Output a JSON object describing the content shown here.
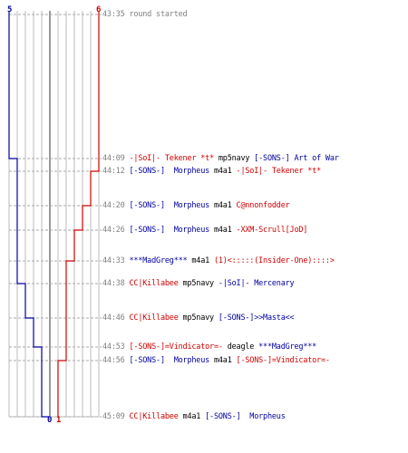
{
  "scoreboard": {
    "blue_start": "5",
    "red_start": "6",
    "blue_end": "0",
    "red_end": "1"
  },
  "colors": {
    "blue": "#0000a0",
    "red": "#d00000",
    "grid": "#bbbbbb",
    "center": "#555555",
    "dash": "#aaaaaa",
    "text": "#000000",
    "time": "#808080"
  },
  "chart_data": {
    "type": "line",
    "x": [
      "43:35",
      "44:09",
      "44:12",
      "44:20",
      "44:26",
      "44:33",
      "44:38",
      "44:46",
      "44:53",
      "44:56",
      "45:09"
    ],
    "series": [
      {
        "values": [
          5,
          4,
          4,
          4,
          4,
          4,
          3,
          2,
          1,
          1,
          0
        ]
      },
      {
        "values": [
          6,
          6,
          5,
          4,
          3,
          2,
          2,
          2,
          2,
          1,
          1
        ]
      }
    ]
  },
  "log": [
    {
      "time": "43:35",
      "parts": [
        {
          "text": "round started",
          "color": "gray"
        }
      ]
    },
    {
      "time": "44:09",
      "parts": [
        {
          "text": "-|SoI|- Tekener *t*",
          "color": "red"
        },
        {
          "text": " mp5navy ",
          "color": "black"
        },
        {
          "text": "[-SONS-] Art of War",
          "color": "blue"
        }
      ]
    },
    {
      "time": "44:12",
      "parts": [
        {
          "text": "[-SONS-]  Morpheus",
          "color": "blue"
        },
        {
          "text": " m4a1 ",
          "color": "black"
        },
        {
          "text": "-|SoI|- Tekener *t*",
          "color": "red"
        }
      ]
    },
    {
      "time": "44:20",
      "parts": [
        {
          "text": "[-SONS-]  Morpheus",
          "color": "blue"
        },
        {
          "text": " m4a1 ",
          "color": "black"
        },
        {
          "text": "C@nnonfodder",
          "color": "red"
        }
      ]
    },
    {
      "time": "44:26",
      "parts": [
        {
          "text": "[-SONS-]  Morpheus",
          "color": "blue"
        },
        {
          "text": " m4a1 ",
          "color": "black"
        },
        {
          "text": "-XXM-Scrull[JoD]",
          "color": "red"
        }
      ]
    },
    {
      "time": "44:33",
      "parts": [
        {
          "text": "***MadGreg***",
          "color": "blue"
        },
        {
          "text": " m4a1 ",
          "color": "black"
        },
        {
          "text": "(1)<:::::(Insider-One)::::>",
          "color": "red"
        }
      ]
    },
    {
      "time": "44:38",
      "parts": [
        {
          "text": "CC|Killabee",
          "color": "red"
        },
        {
          "text": " mp5navy ",
          "color": "black"
        },
        {
          "text": "-|SoI|- Mercenary",
          "color": "blue"
        }
      ]
    },
    {
      "time": "44:46",
      "parts": [
        {
          "text": "CC|Killabee",
          "color": "red"
        },
        {
          "text": " mp5navy ",
          "color": "black"
        },
        {
          "text": "[-SONS-]>>Masta<<",
          "color": "blue"
        }
      ]
    },
    {
      "time": "44:53",
      "parts": [
        {
          "text": "[-SONS-]=Vindicator=-",
          "color": "red"
        },
        {
          "text": " deagle ",
          "color": "black"
        },
        {
          "text": "***MadGreg***",
          "color": "blue"
        }
      ]
    },
    {
      "time": "44:56",
      "parts": [
        {
          "text": "[-SONS-]  Morpheus",
          "color": "blue"
        },
        {
          "text": " m4a1 ",
          "color": "black"
        },
        {
          "text": "[-SONS-]=Vindicator=-",
          "color": "red"
        }
      ]
    },
    {
      "time": "45:09",
      "parts": [
        {
          "text": "CC|Killabee",
          "color": "red"
        },
        {
          "text": " m4a1 ",
          "color": "black"
        },
        {
          "text": "[-SONS-]  Morpheus",
          "color": "blue"
        }
      ]
    }
  ]
}
